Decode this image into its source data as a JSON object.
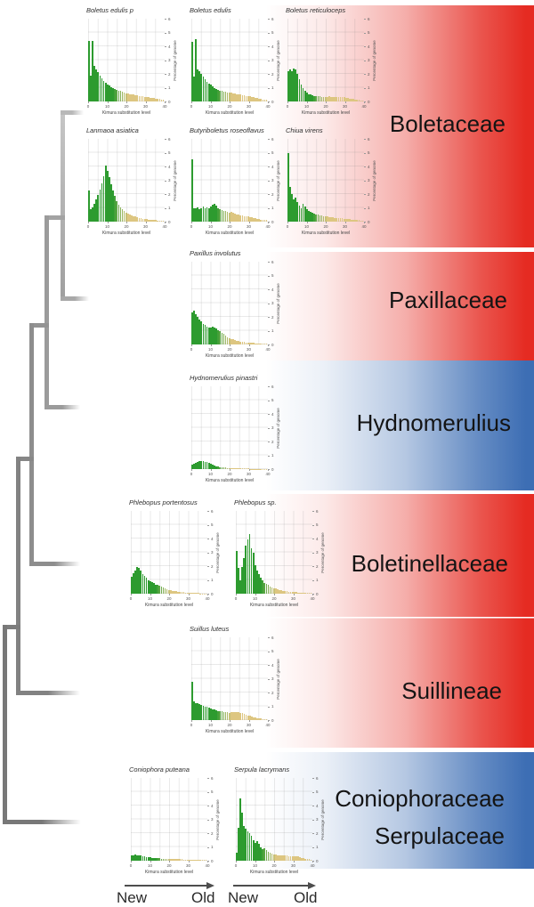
{
  "figure": {
    "timeline": {
      "new_label": "New",
      "old_label": "Old"
    },
    "bands": [
      {
        "label": "Boletaceae",
        "color": "#e52b22",
        "kind": "red"
      },
      {
        "label": "Paxillaceae",
        "color": "#e52b22",
        "kind": "red"
      },
      {
        "label": "Hydnomerulius",
        "color": "#3d6eb4",
        "kind": "blue"
      },
      {
        "label": "Boletinellaceae",
        "color": "#e52b22",
        "kind": "red"
      },
      {
        "label": "Suillineae",
        "color": "#e52b22",
        "kind": "red"
      },
      {
        "label": "Coniophoraceae",
        "label2": "Serpulaceae",
        "color": "#3d6eb4",
        "kind": "blue"
      }
    ],
    "tree": {
      "type": "cladogram",
      "color": "#8a8a8a",
      "topology": "(((((Boletaceae,Paxillaceae),Hydnomerulius),Boletinellaceae),Suillineae),(Coniophoraceae,Serpulaceae))"
    },
    "palette": {
      "repeat_young": "#2d9b2f",
      "repeat_old": "#ddc681",
      "grid": "#dcdcdc",
      "tree_gray": "#8a8a8a",
      "arrow_gray": "#4d4d4d"
    }
  },
  "chart_defaults": {
    "xlabel": "Kimura substitution level",
    "ylabel": "Percentage of genome",
    "x_ticks": [
      0,
      10,
      20,
      30,
      40
    ],
    "y_ticks": [
      0,
      1,
      2,
      3,
      4,
      5,
      6
    ],
    "xlim": [
      0,
      40
    ],
    "ylim": [
      0,
      6
    ]
  },
  "chart_data": [
    {
      "type": "bar",
      "title": "Boletus edulis p",
      "family": "Boletaceae",
      "values": [
        4.4,
        1.9,
        4.4,
        2.6,
        2.3,
        2.1,
        1.9,
        1.7,
        1.5,
        1.35,
        1.25,
        1.15,
        1.05,
        0.95,
        0.9,
        0.85,
        0.8,
        0.75,
        0.7,
        0.65,
        0.6,
        0.58,
        0.55,
        0.52,
        0.5,
        0.48,
        0.45,
        0.42,
        0.4,
        0.38,
        0.35,
        0.32,
        0.3,
        0.28,
        0.26,
        0.24,
        0.22,
        0.2,
        0.18,
        0.15,
        0.12
      ]
    },
    {
      "type": "bar",
      "title": "Boletus edulis",
      "family": "Boletaceae",
      "values": [
        4.3,
        1.8,
        4.55,
        2.3,
        2.2,
        2.0,
        1.8,
        1.6,
        1.45,
        1.3,
        1.2,
        1.1,
        1.0,
        0.92,
        0.85,
        0.8,
        0.75,
        0.72,
        0.7,
        0.68,
        0.65,
        0.62,
        0.6,
        0.58,
        0.55,
        0.52,
        0.5,
        0.48,
        0.45,
        0.42,
        0.4,
        0.37,
        0.34,
        0.3,
        0.27,
        0.24,
        0.21,
        0.18,
        0.15,
        0.12,
        0.1
      ]
    },
    {
      "type": "bar",
      "title": "Boletus reticuloceps",
      "family": "Boletaceae",
      "values": [
        2.2,
        2.35,
        2.2,
        2.4,
        2.3,
        2.0,
        1.6,
        1.2,
        0.95,
        0.8,
        0.65,
        0.55,
        0.5,
        0.45,
        0.42,
        0.4,
        0.38,
        0.36,
        0.35,
        0.34,
        0.33,
        0.35,
        0.36,
        0.35,
        0.34,
        0.33,
        0.32,
        0.33,
        0.34,
        0.32,
        0.3,
        0.28,
        0.25,
        0.22,
        0.2,
        0.17,
        0.15,
        0.13,
        0.11,
        0.09,
        0.07
      ]
    },
    {
      "type": "bar",
      "title": "Lanmaoa asiatica",
      "family": "Boletaceae",
      "values": [
        2.25,
        0.9,
        1.05,
        1.3,
        1.6,
        1.95,
        2.35,
        2.8,
        3.3,
        4.05,
        3.7,
        3.2,
        2.7,
        2.25,
        1.85,
        1.5,
        1.25,
        1.05,
        0.9,
        0.78,
        0.68,
        0.6,
        0.52,
        0.46,
        0.4,
        0.36,
        0.32,
        0.28,
        0.25,
        0.22,
        0.2,
        0.18,
        0.16,
        0.14,
        0.12,
        0.11,
        0.1,
        0.09,
        0.08,
        0.07,
        0.06
      ]
    },
    {
      "type": "bar",
      "title": "Butyriboletus roseoflavus",
      "family": "Boletaceae",
      "values": [
        4.5,
        1.0,
        0.95,
        1.05,
        0.9,
        1.0,
        1.1,
        0.95,
        1.05,
        1.0,
        1.1,
        1.2,
        1.3,
        1.15,
        1.0,
        0.9,
        0.85,
        0.8,
        0.75,
        0.7,
        0.68,
        0.72,
        0.65,
        0.6,
        0.55,
        0.5,
        0.48,
        0.45,
        0.42,
        0.4,
        0.36,
        0.33,
        0.3,
        0.27,
        0.24,
        0.21,
        0.18,
        0.16,
        0.14,
        0.12,
        0.1
      ]
    },
    {
      "type": "bar",
      "title": "Chiua virens",
      "family": "Boletaceae",
      "values": [
        5.0,
        2.5,
        2.0,
        1.6,
        1.75,
        1.4,
        1.15,
        1.0,
        1.3,
        1.1,
        0.9,
        0.8,
        0.72,
        0.65,
        0.6,
        0.55,
        0.5,
        0.46,
        0.43,
        0.4,
        0.38,
        0.36,
        0.34,
        0.32,
        0.3,
        0.28,
        0.27,
        0.26,
        0.25,
        0.24,
        0.22,
        0.2,
        0.19,
        0.17,
        0.16,
        0.14,
        0.13,
        0.11,
        0.1,
        0.08,
        0.07
      ]
    },
    {
      "type": "bar",
      "title": "Paxillus involutus",
      "family": "Paxillaceae",
      "values": [
        2.3,
        2.45,
        2.2,
        2.0,
        1.8,
        1.65,
        1.5,
        1.4,
        1.3,
        1.25,
        1.2,
        1.3,
        1.25,
        1.15,
        1.05,
        0.95,
        0.85,
        0.75,
        0.65,
        0.55,
        0.48,
        0.42,
        0.37,
        0.32,
        0.28,
        0.25,
        0.22,
        0.2,
        0.18,
        0.16,
        0.14,
        0.12,
        0.11,
        0.1,
        0.09,
        0.08,
        0.07,
        0.06,
        0.05,
        0.05,
        0.04
      ]
    },
    {
      "type": "bar",
      "title": "Hydnomerulius pinastri",
      "family": "Hydnomerulius",
      "values": [
        0.35,
        0.42,
        0.48,
        0.52,
        0.56,
        0.6,
        0.58,
        0.55,
        0.5,
        0.45,
        0.4,
        0.33,
        0.27,
        0.22,
        0.18,
        0.15,
        0.13,
        0.11,
        0.1,
        0.09,
        0.08,
        0.07,
        0.07,
        0.06,
        0.06,
        0.05,
        0.05,
        0.05,
        0.04,
        0.04,
        0.04,
        0.03,
        0.03,
        0.03,
        0.03,
        0.02,
        0.02,
        0.02,
        0.02,
        0.02,
        0.02
      ]
    },
    {
      "type": "bar",
      "title": "Phlebopus portentosus",
      "family": "Boletinellaceae",
      "values": [
        1.2,
        1.5,
        1.7,
        1.95,
        1.85,
        1.65,
        1.45,
        1.3,
        1.15,
        1.0,
        0.9,
        0.82,
        0.75,
        0.68,
        0.62,
        0.56,
        0.5,
        0.44,
        0.38,
        0.33,
        0.29,
        0.25,
        0.22,
        0.19,
        0.17,
        0.15,
        0.13,
        0.11,
        0.1,
        0.09,
        0.08,
        0.07,
        0.06,
        0.05,
        0.05,
        0.04,
        0.04,
        0.03,
        0.03,
        0.03,
        0.02
      ]
    },
    {
      "type": "bar",
      "title": "Phlebopus sp.",
      "family": "Boletinellaceae",
      "values": [
        3.1,
        1.9,
        1.0,
        1.95,
        2.6,
        3.5,
        3.95,
        4.35,
        3.3,
        2.95,
        2.05,
        1.65,
        1.4,
        1.15,
        0.95,
        0.8,
        0.7,
        0.62,
        0.55,
        0.48,
        0.42,
        0.37,
        0.32,
        0.28,
        0.25,
        0.22,
        0.2,
        0.18,
        0.16,
        0.14,
        0.12,
        0.11,
        0.1,
        0.09,
        0.08,
        0.07,
        0.06,
        0.05,
        0.05,
        0.04,
        0.04
      ]
    },
    {
      "type": "bar",
      "title": "Suillus luteus",
      "family": "Suillineae",
      "values": [
        2.8,
        1.35,
        1.25,
        1.2,
        1.15,
        1.1,
        1.05,
        1.0,
        0.95,
        0.9,
        0.85,
        0.8,
        0.76,
        0.72,
        0.68,
        0.65,
        0.62,
        0.6,
        0.58,
        0.56,
        0.55,
        0.56,
        0.58,
        0.6,
        0.58,
        0.56,
        0.53,
        0.5,
        0.45,
        0.4,
        0.35,
        0.3,
        0.26,
        0.22,
        0.19,
        0.16,
        0.13,
        0.11,
        0.09,
        0.07,
        0.06
      ]
    },
    {
      "type": "bar",
      "title": "Coniophora puteana",
      "family": "Coniophoraceae",
      "values": [
        0.38,
        0.42,
        0.45,
        0.42,
        0.4,
        0.37,
        0.34,
        0.31,
        0.28,
        0.26,
        0.24,
        0.22,
        0.2,
        0.19,
        0.18,
        0.17,
        0.16,
        0.15,
        0.14,
        0.13,
        0.13,
        0.12,
        0.12,
        0.11,
        0.11,
        0.1,
        0.1,
        0.1,
        0.09,
        0.09,
        0.09,
        0.08,
        0.08,
        0.08,
        0.07,
        0.07,
        0.07,
        0.06,
        0.06,
        0.06,
        0.05
      ]
    },
    {
      "type": "bar",
      "title": "Serpula lacrymans",
      "family": "Serpulaceae",
      "values": [
        0.6,
        2.4,
        4.55,
        3.5,
        2.5,
        2.3,
        2.15,
        2.0,
        1.8,
        1.5,
        1.3,
        1.45,
        1.2,
        1.0,
        0.85,
        0.92,
        0.75,
        0.65,
        0.58,
        0.52,
        0.47,
        0.43,
        0.4,
        0.38,
        0.36,
        0.38,
        0.4,
        0.38,
        0.35,
        0.32,
        0.3,
        0.33,
        0.35,
        0.3,
        0.25,
        0.2,
        0.17,
        0.14,
        0.12,
        0.1,
        0.08
      ]
    }
  ]
}
